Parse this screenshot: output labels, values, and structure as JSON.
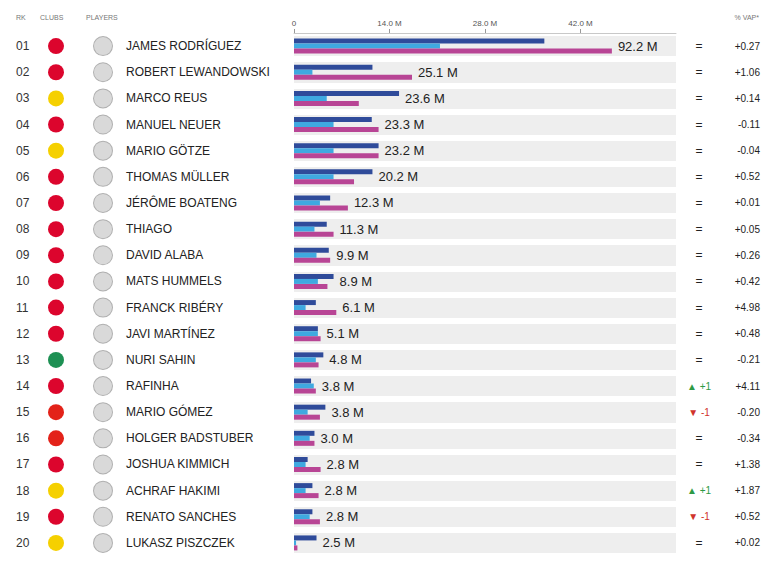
{
  "chart_data": {
    "type": "bar",
    "orientation": "horizontal",
    "grid": false,
    "column_heads": [
      "RK",
      "CLUBS",
      "PLAYERS",
      "% VAP*"
    ],
    "ranks": [
      "01",
      "02",
      "03",
      "04",
      "05",
      "06",
      "07",
      "08",
      "09",
      "10",
      "11",
      "12",
      "13",
      "14",
      "15",
      "16",
      "17",
      "18",
      "19",
      "20"
    ],
    "categories": [
      "JAMES RODRÍGUEZ",
      "ROBERT LEWANDOWSKI",
      "MARCO REUS",
      "MANUEL NEUER",
      "MARIO GÖTZE",
      "THOMAS MÜLLER",
      "JÉRÔME BOATENG",
      "THIAGO",
      "DAVID ALABA",
      "MATS HUMMELS",
      "FRANCK RIBÉRY",
      "JAVI MARTÍNEZ",
      "NURI SAHIN",
      "RAFINHA",
      "MARIO GÓMEZ",
      "HOLGER BADSTUBER",
      "JOSHUA KIMMICH",
      "ACHRAF HAKIMI",
      "RENATO SANCHES",
      "LUKASZ PISZCZEK"
    ],
    "club_colors": [
      "#dc052d",
      "#dc052d",
      "#f5d000",
      "#dc052d",
      "#f5d000",
      "#dc052d",
      "#dc052d",
      "#dc052d",
      "#dc052d",
      "#dc052d",
      "#dc052d",
      "#dc052d",
      "#1d9053",
      "#dc052d",
      "#e32219",
      "#e32219",
      "#dc052d",
      "#f5d000",
      "#dc052d",
      "#f5d000"
    ],
    "totals": [
      "92.2 M",
      "25.1 M",
      "23.6 M",
      "23.3 M",
      "23.2 M",
      "20.2 M",
      "12.3 M",
      "11.3 M",
      "9.9 M",
      "8.9 M",
      "6.1 M",
      "5.1 M",
      "4.8 M",
      "3.8 M",
      "3.8 M",
      "3.0 M",
      "2.8 M",
      "2.8 M",
      "2.8 M",
      "2.5 M"
    ],
    "rank_changes": [
      "=",
      "=",
      "=",
      "=",
      "=",
      "=",
      "=",
      "=",
      "=",
      "=",
      "=",
      "=",
      "=",
      "▲ +1",
      "▼ -1",
      "=",
      "=",
      "▲ +1",
      "▼ -1",
      "="
    ],
    "vap": [
      "+0.27",
      "+1.06",
      "+0.14",
      "-0.11",
      "-0.04",
      "+0.52",
      "+0.01",
      "+0.05",
      "+0.26",
      "+0.42",
      "+4.98",
      "+0.48",
      "-0.21",
      "+4.11",
      "-0.20",
      "-0.34",
      "+1.38",
      "+1.87",
      "+0.52",
      "+0.02"
    ],
    "series": [
      {
        "color": "#2f4b9a",
        "values": [
          36.7,
          11.5,
          15.4,
          11.4,
          12.4,
          11.5,
          5.3,
          4.8,
          5.1,
          5.8,
          3.2,
          3.5,
          4.3,
          2.5,
          4.6,
          3.0,
          2.0,
          2.7,
          2.7,
          3.3
        ]
      },
      {
        "color": "#3fa9e0",
        "values": [
          21.4,
          2.7,
          4.8,
          5.8,
          5.8,
          5.8,
          3.8,
          3.0,
          3.3,
          3.5,
          1.7,
          3.5,
          3.2,
          2.9,
          2.0,
          2.3,
          1.7,
          1.7,
          2.3,
          0.3
        ]
      },
      {
        "color": "#b84595",
        "values": [
          46.6,
          17.3,
          9.5,
          12.4,
          12.4,
          8.8,
          7.9,
          5.8,
          5.3,
          4.9,
          6.2,
          3.9,
          3.6,
          3.2,
          3.8,
          3.0,
          3.9,
          3.6,
          3.8,
          0.5
        ]
      }
    ],
    "xlim": [
      0,
      56
    ],
    "xticks": [
      0,
      {
        "value": 14,
        "label": "14.0 M"
      },
      {
        "value": 28,
        "label": "28.0 M"
      },
      {
        "value": 42,
        "label": "42.0 M"
      }
    ]
  }
}
